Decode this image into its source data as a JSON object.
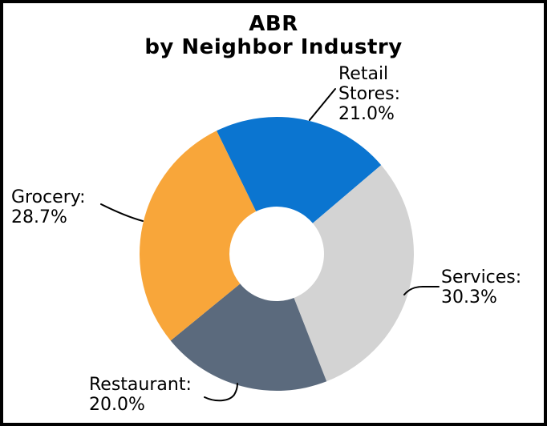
{
  "chart_data": {
    "type": "pie",
    "subtype": "donut",
    "title_lines": [
      "ABR",
      "by Neighbor Industry"
    ],
    "title": "ABR by Neighbor Industry",
    "legend": "none",
    "leader_lines": true,
    "start_angle_deg": -26,
    "direction": "clockwise",
    "inner_radius_ratio": 0.345,
    "slices": [
      {
        "label": "Retail Stores",
        "value_pct": 21.0,
        "color": "#0B75D0",
        "label_lines": [
          "Retail",
          "Stores:",
          "21.0%"
        ]
      },
      {
        "label": "Services",
        "value_pct": 30.3,
        "color": "#D3D3D3",
        "label_lines": [
          "Services:",
          "30.3%"
        ]
      },
      {
        "label": "Restaurant",
        "value_pct": 20.0,
        "color": "#5B6A7D",
        "label_lines": [
          "Restaurant:",
          "20.0%"
        ]
      },
      {
        "label": "Grocery",
        "value_pct": 28.7,
        "color": "#F8A63A",
        "label_lines": [
          "Grocery:",
          "28.7%"
        ]
      }
    ],
    "colors": {
      "leader_line": "#000000",
      "text": "#000000",
      "background": "#FFFFFF",
      "frame_border": "#000000"
    }
  }
}
